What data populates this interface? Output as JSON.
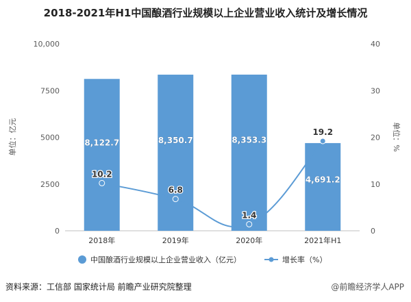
{
  "title": "2018-2021年H1中国酿酒行业规模以上企业营业收入统计及增长情况",
  "source": "资料来源：工信部 国家统计局 前瞻产业研究院整理",
  "watermark": "@前瞻经济学人APP",
  "colors": {
    "bar": "#5b9bd5",
    "line": "#5b9bd5",
    "axis_text": "#595959",
    "grid": "#d9d9d9"
  },
  "chart_data": {
    "type": "bar",
    "categories": [
      "2018年",
      "2019年",
      "2020年",
      "2021年H1"
    ],
    "series": [
      {
        "name": "中国酿酒行业规模以上企业营业收入（亿元）",
        "type": "bar",
        "axis": "left",
        "values": [
          8122.7,
          8350.7,
          8353.3,
          4691.2
        ],
        "labels": [
          "8,122.7",
          "8,350.7",
          "8,353.3",
          "4,691.2"
        ]
      },
      {
        "name": "增长率（%）",
        "type": "line",
        "axis": "right",
        "values": [
          10.2,
          6.8,
          1.4,
          19.2
        ],
        "labels": [
          "10.2",
          "6.8",
          "1.4",
          "19.2"
        ]
      }
    ],
    "y_left": {
      "label": "单位：亿元",
      "ylim": [
        0,
        10000
      ],
      "ticks": [
        "0",
        "2500",
        "5000",
        "7500",
        "10,000"
      ],
      "tick_values": [
        0,
        2500,
        5000,
        7500,
        10000
      ]
    },
    "y_right": {
      "label": "单位：%",
      "ylim": [
        0,
        40
      ],
      "ticks": [
        "0",
        "10",
        "20",
        "30",
        "40"
      ],
      "tick_values": [
        0,
        10,
        20,
        30,
        40
      ]
    },
    "grid": false,
    "legend": "bottom"
  }
}
